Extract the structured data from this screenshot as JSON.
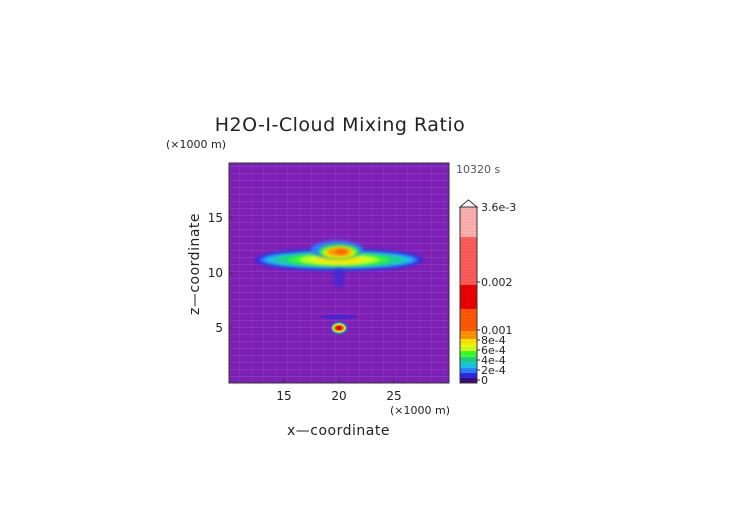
{
  "chart_data": {
    "type": "heatmap",
    "title": "H2O-I-Cloud Mixing Ratio",
    "time_label": "10320 s",
    "xlabel": "x—coordinate",
    "ylabel": "z—coordinate",
    "x_unit": "(×1000 m)",
    "y_unit": "(×1000 m)",
    "xlim": [
      10,
      30
    ],
    "ylim": [
      0,
      20
    ],
    "x_ticks": [
      "15",
      "20",
      "25"
    ],
    "y_ticks": [
      "5",
      "10",
      "15"
    ],
    "colorbar": {
      "max_label": "3.6e-3",
      "ticks": [
        "0.002",
        "0.001",
        "8e-4",
        "6e-4",
        "4e-4",
        "2e-4",
        "0"
      ]
    },
    "features": [
      {
        "name": "upper cloud layer",
        "x_center": 20,
        "z_center": 11.2,
        "x_extent": [
          13,
          28
        ],
        "peak": 0.0011
      },
      {
        "name": "lower cloud core",
        "x_center": 20,
        "z_center": 5,
        "x_extent": [
          19.3,
          20.7
        ],
        "peak": 0.0012
      }
    ],
    "colors": {
      "background": "#7d20b4",
      "colormap": [
        "#3e0a78",
        "#7d20b4",
        "#2a2ae0",
        "#2f80ff",
        "#16c8e8",
        "#1fd08a",
        "#38ff2a",
        "#d6ff1a",
        "#ffe600",
        "#ff9400",
        "#ff5a00",
        "#ee0000",
        "#ff5c5c",
        "#ffb0b0"
      ]
    }
  }
}
